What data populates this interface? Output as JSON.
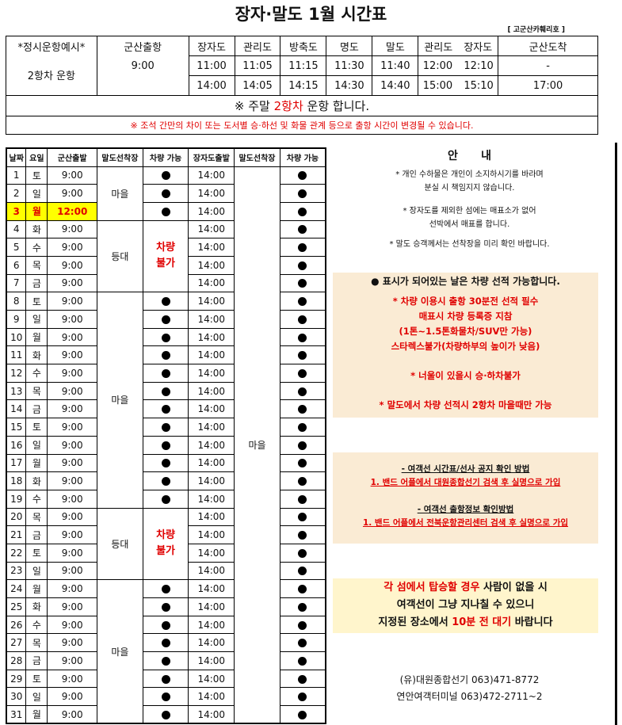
{
  "title": "장자·말도 1월 시간표",
  "ship": "[ 고군산카훼리호 ]",
  "top": {
    "label1": "*정시운항예시*",
    "label2": "2항차 운항",
    "headers": [
      "군산출항",
      "장자도",
      "관리도",
      "방축도",
      "명도",
      "말도",
      "관리도",
      "장자도",
      "군산도착"
    ],
    "trip1": [
      "9:00",
      "11:00",
      "11:05",
      "11:15",
      "11:30",
      "11:40",
      "12:00",
      "12:10",
      "-"
    ],
    "trip2": [
      "",
      "14:00",
      "14:05",
      "14:15",
      "14:30",
      "14:40",
      "15:00",
      "15:10",
      "17:00"
    ],
    "weekend_pre": "※ 주말 ",
    "weekend_red": "2항차",
    "weekend_post": " 운항 합니다.",
    "warning": "※ 조석 간만의 차이 또는 도서별 승·하선 및 화물 관계 등으로 출항 시간이 변경될 수 있습니다."
  },
  "schedule": {
    "headers": [
      "날짜",
      "요일",
      "군산출발",
      "말도선착장",
      "차량 가능",
      "장자도출발",
      "말도선착장",
      "차량 가능"
    ],
    "return_dock": "마을",
    "groups": [
      {
        "dock": "마을",
        "span": 3,
        "car": true
      },
      {
        "dock": "등대",
        "span": 4,
        "car": false,
        "note": "차량 불가"
      },
      {
        "dock": "마을",
        "span": 12,
        "car": true
      },
      {
        "dock": "등대",
        "span": 4,
        "car": false,
        "note": "차량 불가"
      },
      {
        "dock": "마을",
        "span": 8,
        "car": true
      }
    ],
    "rows": [
      {
        "date": "1",
        "dow": "토",
        "depart": "9:00",
        "ret": "14:00"
      },
      {
        "date": "2",
        "dow": "일",
        "depart": "9:00",
        "ret": "14:00"
      },
      {
        "date": "3",
        "dow": "월",
        "depart": "12:00",
        "ret": "14:00",
        "highlight": true
      },
      {
        "date": "4",
        "dow": "화",
        "depart": "9:00",
        "ret": "14:00"
      },
      {
        "date": "5",
        "dow": "수",
        "depart": "9:00",
        "ret": "14:00"
      },
      {
        "date": "6",
        "dow": "목",
        "depart": "9:00",
        "ret": "14:00"
      },
      {
        "date": "7",
        "dow": "금",
        "depart": "9:00",
        "ret": "14:00"
      },
      {
        "date": "8",
        "dow": "토",
        "depart": "9:00",
        "ret": "14:00"
      },
      {
        "date": "9",
        "dow": "일",
        "depart": "9:00",
        "ret": "14:00"
      },
      {
        "date": "10",
        "dow": "월",
        "depart": "9:00",
        "ret": "14:00"
      },
      {
        "date": "11",
        "dow": "화",
        "depart": "9:00",
        "ret": "14:00"
      },
      {
        "date": "12",
        "dow": "수",
        "depart": "9:00",
        "ret": "14:00"
      },
      {
        "date": "13",
        "dow": "목",
        "depart": "9:00",
        "ret": "14:00"
      },
      {
        "date": "14",
        "dow": "금",
        "depart": "9:00",
        "ret": "14:00"
      },
      {
        "date": "15",
        "dow": "토",
        "depart": "9:00",
        "ret": "14:00"
      },
      {
        "date": "16",
        "dow": "일",
        "depart": "9:00",
        "ret": "14:00"
      },
      {
        "date": "17",
        "dow": "월",
        "depart": "9:00",
        "ret": "14:00"
      },
      {
        "date": "18",
        "dow": "화",
        "depart": "9:00",
        "ret": "14:00"
      },
      {
        "date": "19",
        "dow": "수",
        "depart": "9:00",
        "ret": "14:00"
      },
      {
        "date": "20",
        "dow": "목",
        "depart": "9:00",
        "ret": "14:00"
      },
      {
        "date": "21",
        "dow": "금",
        "depart": "9:00",
        "ret": "14:00"
      },
      {
        "date": "22",
        "dow": "토",
        "depart": "9:00",
        "ret": "14:00"
      },
      {
        "date": "23",
        "dow": "일",
        "depart": "9:00",
        "ret": "14:00"
      },
      {
        "date": "24",
        "dow": "월",
        "depart": "9:00",
        "ret": "14:00"
      },
      {
        "date": "25",
        "dow": "화",
        "depart": "9:00",
        "ret": "14:00"
      },
      {
        "date": "26",
        "dow": "수",
        "depart": "9:00",
        "ret": "14:00"
      },
      {
        "date": "27",
        "dow": "목",
        "depart": "9:00",
        "ret": "14:00"
      },
      {
        "date": "28",
        "dow": "금",
        "depart": "9:00",
        "ret": "14:00"
      },
      {
        "date": "29",
        "dow": "토",
        "depart": "9:00",
        "ret": "14:00"
      },
      {
        "date": "30",
        "dow": "일",
        "depart": "9:00",
        "ret": "14:00"
      },
      {
        "date": "31",
        "dow": "월",
        "depart": "9:00",
        "ret": "14:00"
      }
    ]
  },
  "guide": {
    "title": "안      내",
    "items": [
      "* 개인 수하물은 개인이 소지하시기를 바라며",
      "분실 시 책임지지 않습니다.",
      "* 장자도를 제외한 섬에는 매표소가 없어",
      "선박에서 매표를 합니다.",
      "* 말도 승객께서는 선착장을 미리 확인 바랍니다."
    ]
  },
  "vehicle": {
    "headline": "● 표시가 되어있는 날은 차량 선적 가능합니다.",
    "lines": [
      "* 차량 이용시 출항 30분전 선적 필수",
      "매표시 차량 등록증 지참",
      "(1톤~1.5톤화물차/SUV만 가능)",
      "스타렉스불가(차량하부의 높이가 낮음)",
      "* 너울이 있을시 승·하차불가",
      "* 말도에서 차량 선적시 2항차 마을때만 가능"
    ]
  },
  "band": {
    "h1": "- 여객선 시간표/선사 공지 확인 방법",
    "l1": "1. 밴드 어플에서 대원종합선기 검색 후 실명으로 가입",
    "h2": "- 여객선 출항정보 확인방법",
    "l2": "1. 밴드 어플에서 전북운항관리센터 검색 후 실명으로 가입"
  },
  "warn": {
    "r1": "각 섬에서 탑승할 경우",
    "b1": " 사람이 없을 시",
    "l2": "여객선이 그냥 지나칠 수 있으니",
    "b3": "지정된 장소에서 ",
    "r3": "10분 전 대기",
    "b3b": " 바랍니다"
  },
  "contact": [
    "(유)대원종합선기  063)471-8772",
    "연안여객터미널 063)472-2711~2"
  ],
  "colors": {
    "red": "#e00000",
    "highlight": "#ffff00",
    "box": "#faebd4",
    "warn_box": "#fff5cc"
  }
}
